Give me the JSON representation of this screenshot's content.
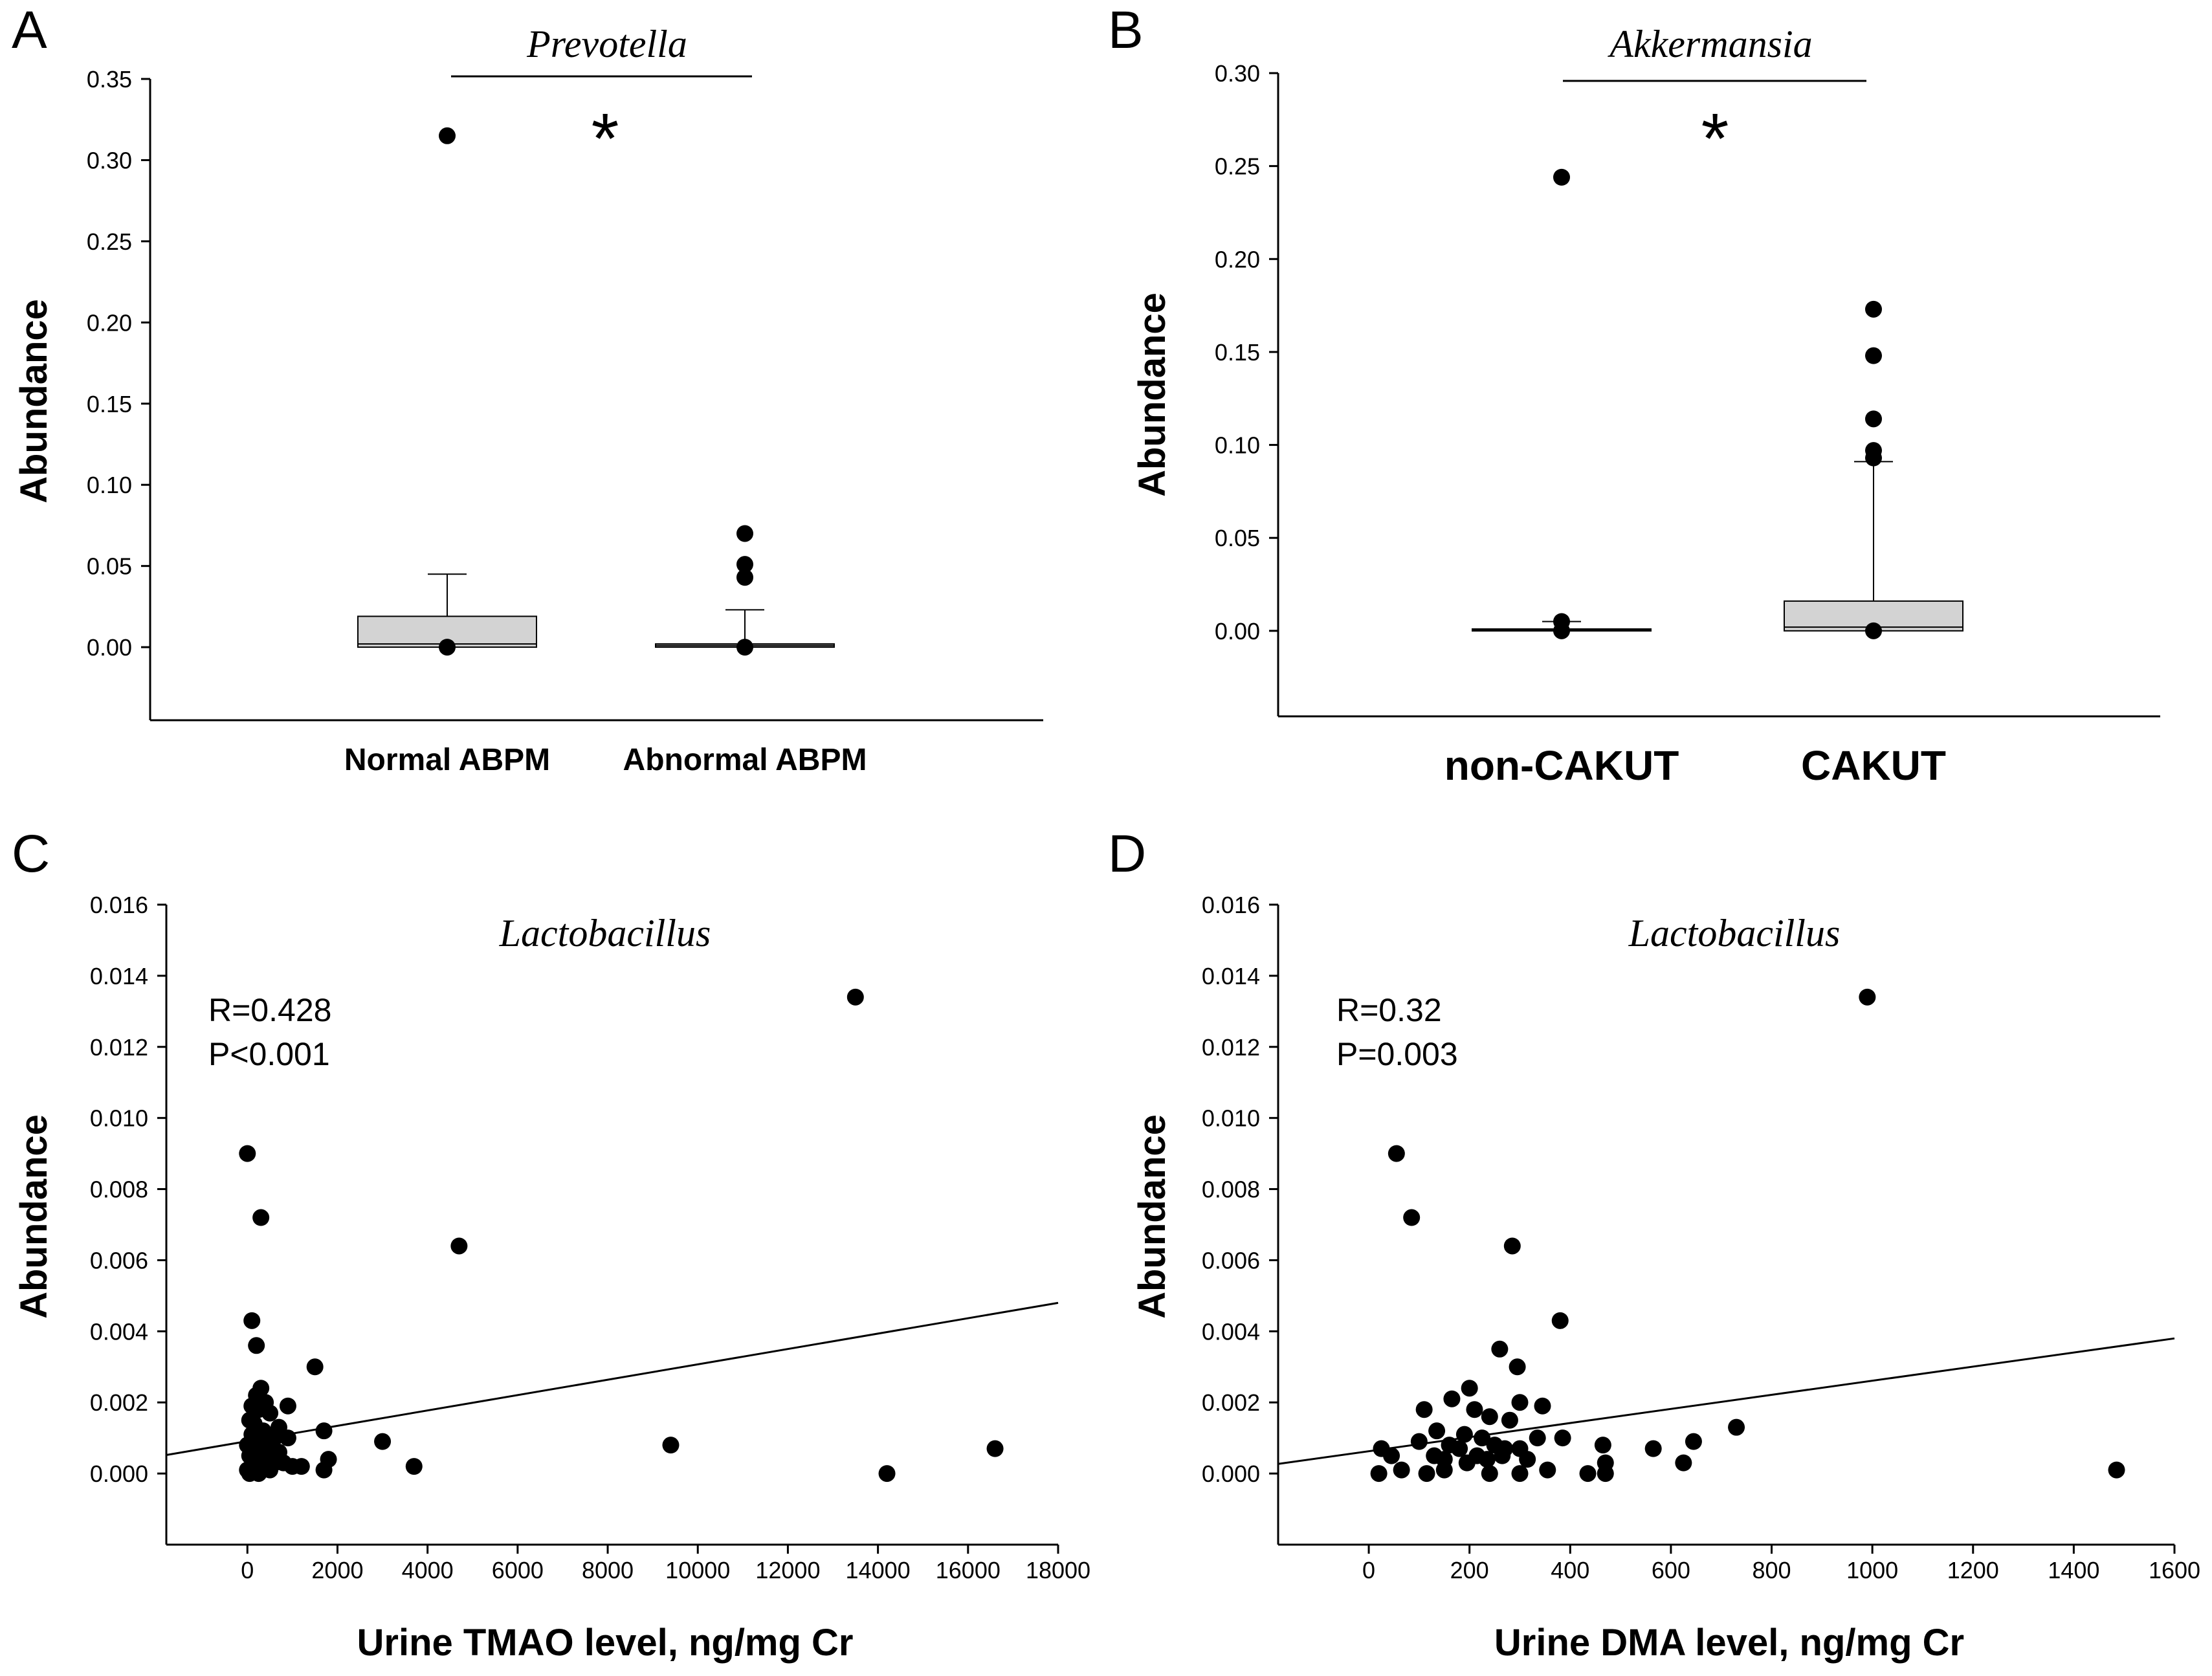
{
  "chart_data": [
    {
      "panel": "A",
      "type": "box",
      "title": "Prevotella",
      "xlabel": "",
      "ylabel": "Abundance",
      "ylim": [
        -0.045,
        0.35
      ],
      "yticks": [
        0.0,
        0.05,
        0.1,
        0.15,
        0.2,
        0.25,
        0.3,
        0.35
      ],
      "ytick_labels": [
        "0.00",
        "0.05",
        "0.10",
        "0.15",
        "0.20",
        "0.25",
        "0.30",
        "0.35"
      ],
      "significance": "*",
      "categories": [
        "Normal ABPM",
        "Abnormal ABPM"
      ],
      "boxes": [
        {
          "name": "Normal ABPM",
          "q1": 0.0,
          "median": 0.002,
          "q3": 0.019,
          "whisker_low": 0.0,
          "whisker_high": 0.045,
          "outliers": [
            0.315,
            0.0
          ]
        },
        {
          "name": "Abnormal ABPM",
          "q1": 0.0,
          "median": 0.001,
          "q3": 0.002,
          "whisker_low": 0.0,
          "whisker_high": 0.023,
          "outliers": [
            0.07,
            0.051,
            0.043,
            0.0
          ]
        }
      ]
    },
    {
      "panel": "B",
      "type": "box",
      "title": "Akkermansia",
      "xlabel": "",
      "ylabel": "Abundance",
      "ylim": [
        -0.046,
        0.3
      ],
      "yticks": [
        0.0,
        0.05,
        0.1,
        0.15,
        0.2,
        0.25,
        0.3
      ],
      "ytick_labels": [
        "0.00",
        "0.05",
        "0.10",
        "0.15",
        "0.20",
        "0.25",
        "0.30"
      ],
      "significance": "*",
      "categories": [
        "non-CAKUT",
        "CAKUT"
      ],
      "boxes": [
        {
          "name": "non-CAKUT",
          "q1": 0.0,
          "median": 0.0005,
          "q3": 0.001,
          "whisker_low": 0.0,
          "whisker_high": 0.005,
          "outliers": [
            0.244,
            0.005,
            0.0
          ]
        },
        {
          "name": "CAKUT",
          "q1": 0.0,
          "median": 0.002,
          "q3": 0.016,
          "whisker_low": 0.0,
          "whisker_high": 0.091,
          "outliers": [
            0.173,
            0.148,
            0.114,
            0.097,
            0.093,
            0.0
          ]
        }
      ]
    },
    {
      "panel": "C",
      "type": "scatter",
      "title": "Lactobacillus",
      "xlabel": "Urine TMAO level, ng/mg Cr",
      "ylabel": "Abundance",
      "xlim": [
        -1800,
        18000
      ],
      "ylim": [
        -0.002,
        0.016
      ],
      "xticks": [
        0,
        2000,
        4000,
        6000,
        8000,
        10000,
        12000,
        14000,
        16000,
        18000
      ],
      "xtick_labels": [
        "0",
        "2000",
        "4000",
        "6000",
        "8000",
        "10000",
        "12000",
        "14000",
        "16000",
        "18000"
      ],
      "yticks": [
        0.0,
        0.002,
        0.004,
        0.006,
        0.008,
        0.01,
        0.012,
        0.014,
        0.016
      ],
      "ytick_labels": [
        "0.000",
        "0.002",
        "0.004",
        "0.006",
        "0.008",
        "0.010",
        "0.012",
        "0.014",
        "0.016"
      ],
      "stats": [
        "R=0.428",
        "P<0.001"
      ],
      "regression": {
        "x": [
          -1800,
          18000
        ],
        "y": [
          0.00052,
          0.0048
        ]
      },
      "points": [
        [
          0,
          0.009
        ],
        [
          300,
          0.0072
        ],
        [
          100,
          0.0043
        ],
        [
          200,
          0.0036
        ],
        [
          4700,
          0.0064
        ],
        [
          13500,
          0.0134
        ],
        [
          1500,
          0.003
        ],
        [
          300,
          0.0024
        ],
        [
          200,
          0.0022
        ],
        [
          400,
          0.002
        ],
        [
          100,
          0.0019
        ],
        [
          250,
          0.0018
        ],
        [
          500,
          0.0017
        ],
        [
          900,
          0.0019
        ],
        [
          50,
          0.0015
        ],
        [
          150,
          0.0014
        ],
        [
          700,
          0.0013
        ],
        [
          1700,
          0.0012
        ],
        [
          350,
          0.0012
        ],
        [
          100,
          0.0011
        ],
        [
          200,
          0.001
        ],
        [
          600,
          0.001
        ],
        [
          900,
          0.001
        ],
        [
          3000,
          0.0009
        ],
        [
          0,
          0.0008
        ],
        [
          150,
          0.0008
        ],
        [
          300,
          0.0008
        ],
        [
          500,
          0.0007
        ],
        [
          100,
          0.0006
        ],
        [
          250,
          0.0006
        ],
        [
          700,
          0.0006
        ],
        [
          9400,
          0.0008
        ],
        [
          16600,
          0.0007
        ],
        [
          50,
          0.0005
        ],
        [
          400,
          0.0005
        ],
        [
          1800,
          0.0004
        ],
        [
          200,
          0.0004
        ],
        [
          600,
          0.0003
        ],
        [
          1200,
          0.0002
        ],
        [
          3700,
          0.0002
        ],
        [
          1000,
          0.0002
        ],
        [
          0,
          0.0001
        ],
        [
          100,
          0.0001
        ],
        [
          300,
          0.0001
        ],
        [
          500,
          0.0001
        ],
        [
          1700,
          0.0001
        ],
        [
          14200,
          0.0
        ],
        [
          50,
          0.0
        ],
        [
          250,
          0.0
        ],
        [
          800,
          0.0003
        ]
      ]
    },
    {
      "panel": "D",
      "type": "scatter",
      "title": "Lactobacillus",
      "xlabel": "Urine DMA level, ng/mg Cr",
      "ylabel": "Abundance",
      "xlim": [
        -180,
        1600
      ],
      "ylim": [
        -0.002,
        0.016
      ],
      "xticks": [
        0,
        200,
        400,
        600,
        800,
        1000,
        1200,
        1400,
        1600
      ],
      "xtick_labels": [
        "0",
        "200",
        "400",
        "600",
        "800",
        "1000",
        "1200",
        "1400",
        "1600"
      ],
      "yticks": [
        0.0,
        0.002,
        0.004,
        0.006,
        0.008,
        0.01,
        0.012,
        0.014,
        0.016
      ],
      "ytick_labels": [
        "0.000",
        "0.002",
        "0.004",
        "0.006",
        "0.008",
        "0.010",
        "0.012",
        "0.014",
        "0.016"
      ],
      "stats": [
        "R=0.32",
        "P=0.003"
      ],
      "regression": {
        "x": [
          -180,
          1600
        ],
        "y": [
          0.00027,
          0.0038
        ]
      },
      "points": [
        [
          55,
          0.009
        ],
        [
          85,
          0.0072
        ],
        [
          285,
          0.0064
        ],
        [
          380,
          0.0043
        ],
        [
          990,
          0.0134
        ],
        [
          1485,
          0.0001
        ],
        [
          260,
          0.0035
        ],
        [
          295,
          0.003
        ],
        [
          200,
          0.0024
        ],
        [
          165,
          0.0021
        ],
        [
          300,
          0.002
        ],
        [
          110,
          0.0018
        ],
        [
          210,
          0.0018
        ],
        [
          345,
          0.0019
        ],
        [
          240,
          0.0016
        ],
        [
          280,
          0.0015
        ],
        [
          135,
          0.0012
        ],
        [
          190,
          0.0011
        ],
        [
          225,
          0.001
        ],
        [
          335,
          0.001
        ],
        [
          385,
          0.001
        ],
        [
          100,
          0.0009
        ],
        [
          160,
          0.0008
        ],
        [
          250,
          0.0008
        ],
        [
          180,
          0.0007
        ],
        [
          270,
          0.0007
        ],
        [
          300,
          0.0007
        ],
        [
          25,
          0.0007
        ],
        [
          465,
          0.0008
        ],
        [
          565,
          0.0007
        ],
        [
          645,
          0.0009
        ],
        [
          730,
          0.0013
        ],
        [
          45,
          0.0005
        ],
        [
          130,
          0.0005
        ],
        [
          215,
          0.0005
        ],
        [
          265,
          0.0005
        ],
        [
          150,
          0.0004
        ],
        [
          235,
          0.0004
        ],
        [
          315,
          0.0004
        ],
        [
          195,
          0.0003
        ],
        [
          470,
          0.0003
        ],
        [
          625,
          0.0003
        ],
        [
          20,
          0.0
        ],
        [
          65,
          0.0001
        ],
        [
          115,
          0.0
        ],
        [
          150,
          0.0001
        ],
        [
          240,
          0.0
        ],
        [
          300,
          0.0
        ],
        [
          355,
          0.0001
        ],
        [
          435,
          0.0
        ],
        [
          470,
          0.0
        ]
      ]
    }
  ]
}
